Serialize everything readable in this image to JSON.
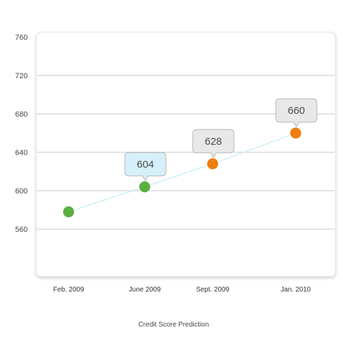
{
  "chart_data": {
    "type": "line",
    "title": "",
    "caption": "Credit Score Prediction",
    "xlabel": "",
    "ylabel": "",
    "categories": [
      "Feb. 2009",
      "June  2009",
      "Sept. 2009",
      "Jan. 2010"
    ],
    "x": [
      "2009-02",
      "2009-06",
      "2009-09",
      "2010-01"
    ],
    "values": [
      578,
      604,
      628,
      660
    ],
    "ylim": [
      520,
      760
    ],
    "yticks": [
      560,
      600,
      640,
      680,
      720,
      760
    ],
    "grid": true,
    "point_kind": [
      "actual",
      "actual",
      "predicted",
      "predicted"
    ],
    "data_labels": [
      "",
      "604",
      "628",
      "660"
    ],
    "colors": {
      "actual_point": "#5aae3e",
      "predicted_point": "#ef7d11",
      "line": "#cfeef8",
      "label_actual_fill": "#d6f0fa",
      "label_predicted_fill": "#e8e8e8"
    }
  }
}
